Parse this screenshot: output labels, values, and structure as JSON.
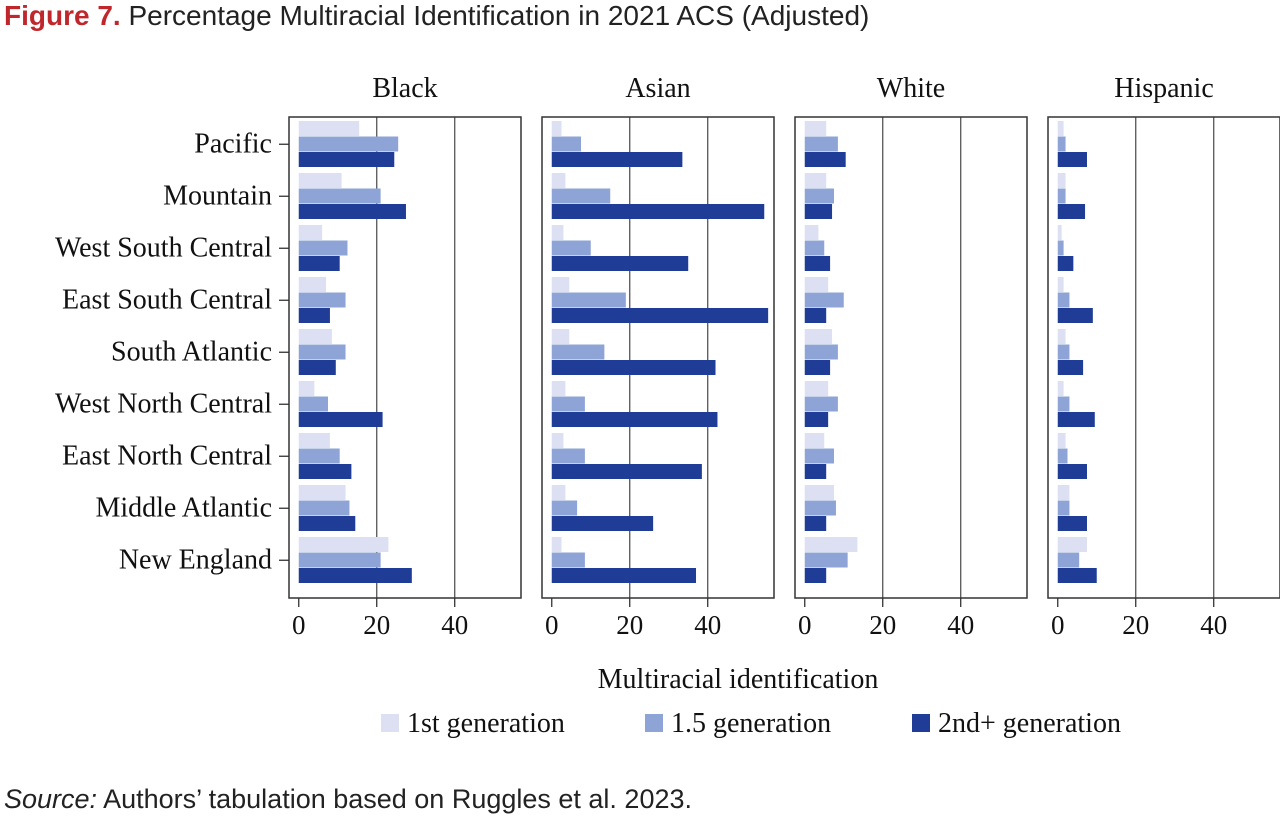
{
  "figure": {
    "label": "Figure 7.",
    "title": "Percentage Multiracial Identification in 2021 ACS (Adjusted)"
  },
  "source": {
    "label": "Source:",
    "text": "Authors’ tabulation based on Ruggles et al. 2023."
  },
  "chart_data": {
    "type": "bar",
    "orientation": "horizontal",
    "xlabel": "Multiracial identification",
    "xlim": [
      -2.5,
      57
    ],
    "xticks": [
      0,
      20,
      40
    ],
    "grid": true,
    "legend_position": "bottom",
    "categories": [
      "Pacific",
      "Mountain",
      "West South Central",
      "East South Central",
      "South Atlantic",
      "West North Central",
      "East North Central",
      "Middle Atlantic",
      "New England"
    ],
    "series_names": [
      "1st generation",
      "1.5 generation",
      "2nd+ generation"
    ],
    "colors": [
      "#dde0f2",
      "#8ea3d6",
      "#1f3d96"
    ],
    "panels": [
      {
        "title": "Black",
        "series": [
          {
            "name": "1st generation",
            "values": [
              15.5,
              11,
              6,
              7,
              8.5,
              4,
              8,
              12,
              23
            ]
          },
          {
            "name": "1.5 generation",
            "values": [
              25.5,
              21,
              12.5,
              12,
              12,
              7.5,
              10.5,
              13,
              21
            ]
          },
          {
            "name": "2nd+ generation",
            "values": [
              24.5,
              27.5,
              10.5,
              8,
              9.5,
              21.5,
              13.5,
              14.5,
              29
            ]
          }
        ]
      },
      {
        "title": "Asian",
        "series": [
          {
            "name": "1st generation",
            "values": [
              2.5,
              3.5,
              3,
              4.5,
              4.5,
              3.5,
              3,
              3.5,
              2.5
            ]
          },
          {
            "name": "1.5 generation",
            "values": [
              7.5,
              15,
              10,
              19,
              13.5,
              8.5,
              8.5,
              6.5,
              8.5
            ]
          },
          {
            "name": "2nd+ generation",
            "values": [
              33.5,
              54.5,
              35,
              55.5,
              42,
              42.5,
              38.5,
              26,
              37
            ]
          }
        ]
      },
      {
        "title": "White",
        "series": [
          {
            "name": "1st generation",
            "values": [
              5.5,
              5.5,
              3.5,
              6,
              7,
              6,
              5,
              7.5,
              13.5
            ]
          },
          {
            "name": "1.5 generation",
            "values": [
              8.5,
              7.5,
              5,
              10,
              8.5,
              8.5,
              7.5,
              8,
              11
            ]
          },
          {
            "name": "2nd+ generation",
            "values": [
              10.5,
              7,
              6.5,
              5.5,
              6.5,
              6,
              5.5,
              5.5,
              5.5
            ]
          }
        ]
      },
      {
        "title": "Hispanic",
        "series": [
          {
            "name": "1st generation",
            "values": [
              1.5,
              2,
              1,
              1.5,
              2,
              1.5,
              2,
              3,
              7.5
            ]
          },
          {
            "name": "1.5 generation",
            "values": [
              2,
              2,
              1.5,
              3,
              3,
              3,
              2.5,
              3,
              5.5
            ]
          },
          {
            "name": "2nd+ generation",
            "values": [
              7.5,
              7,
              4,
              9,
              6.5,
              9.5,
              7.5,
              7.5,
              10
            ]
          }
        ]
      }
    ]
  }
}
